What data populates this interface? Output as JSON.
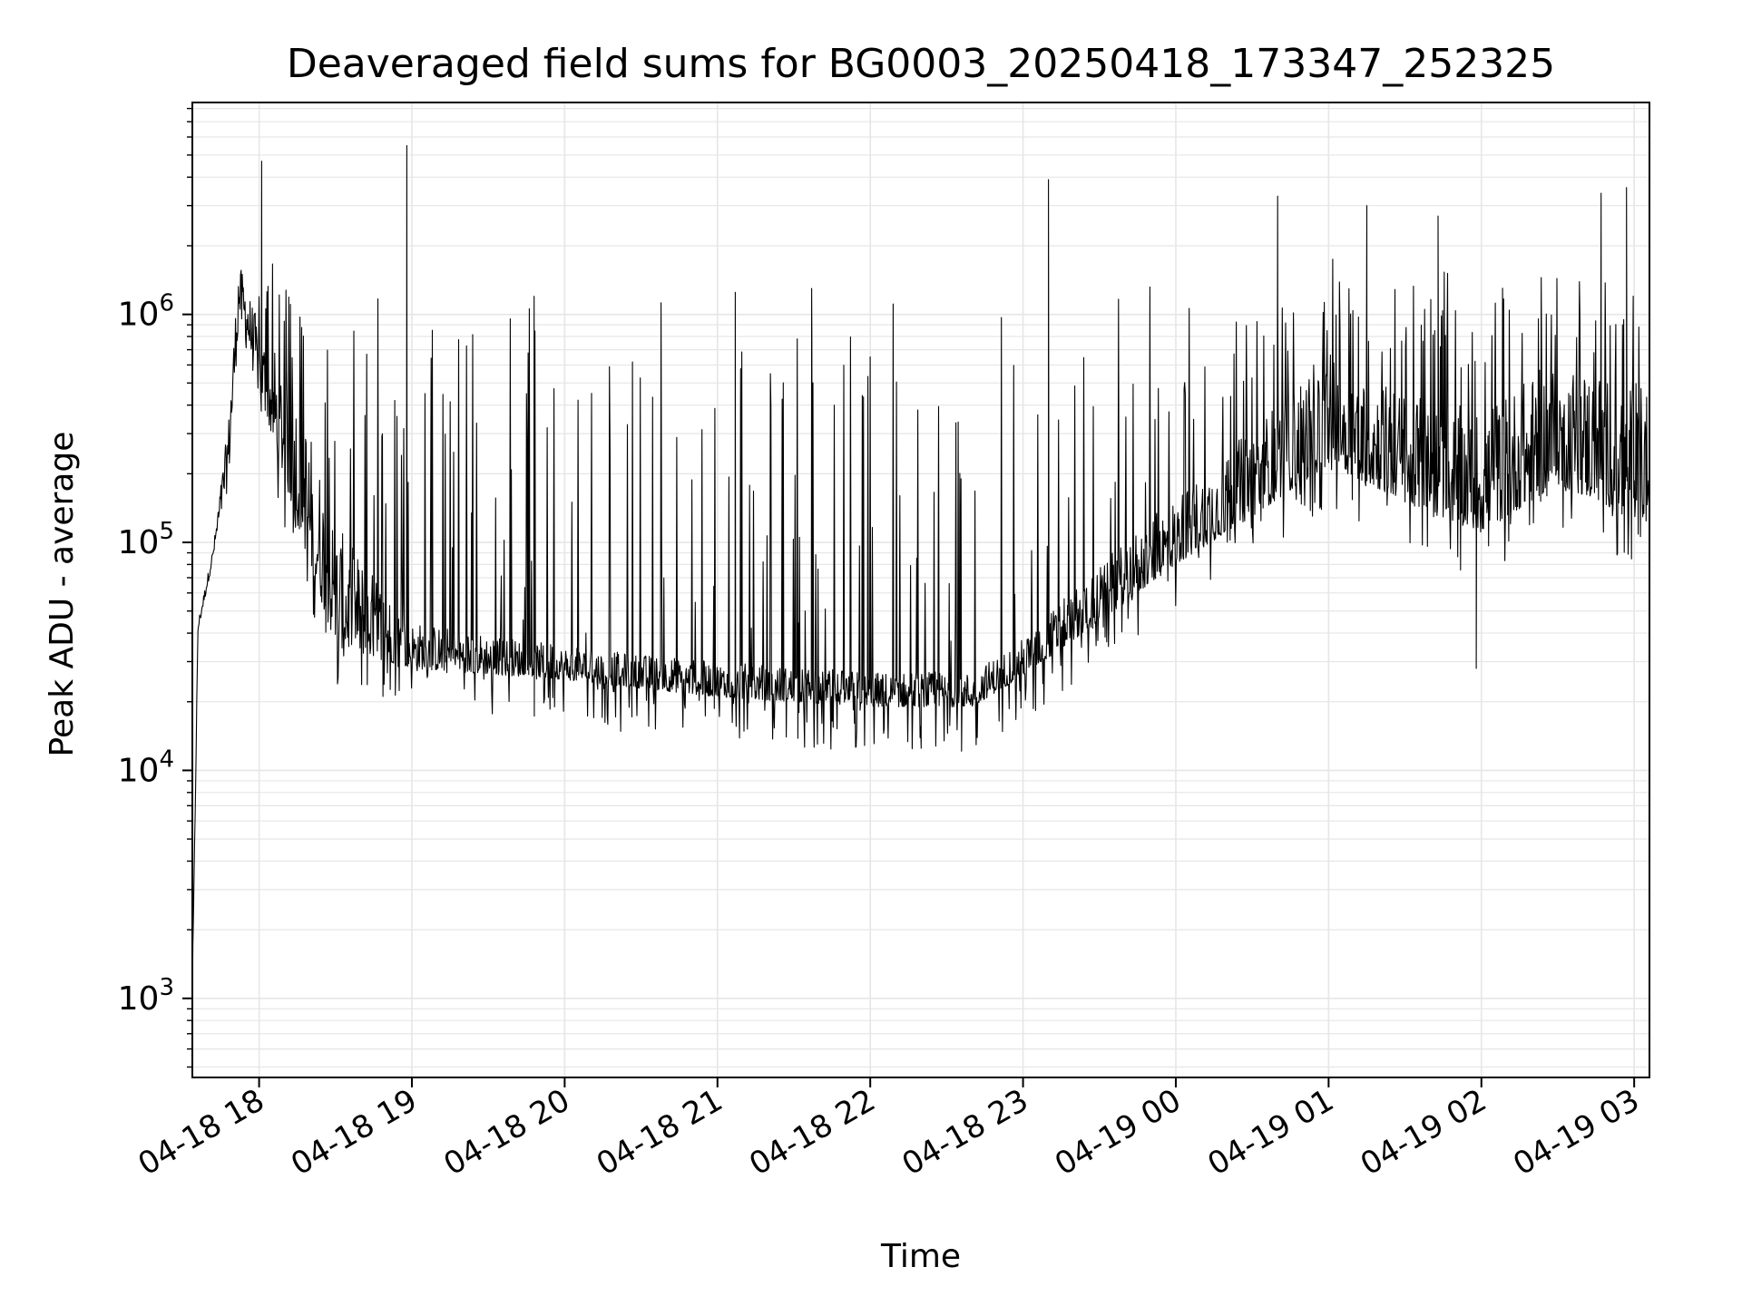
{
  "chart_data": {
    "type": "line",
    "title": "Deaveraged field sums for BG0003_20250418_173347_252325",
    "xlabel": "Time",
    "ylabel": "Peak ADU - average",
    "y_scale": "log",
    "ylim": [
      450,
      8500000
    ],
    "xlim": [
      "2025-04-18 17:33:47",
      "2025-04-19 03:06:00"
    ],
    "grid": true,
    "line_color": "#000000",
    "grid_color": "#e6e6e6",
    "x_ticks": [
      {
        "t": "2025-04-18 18:00",
        "label": "04-18 18"
      },
      {
        "t": "2025-04-18 19:00",
        "label": "04-18 19"
      },
      {
        "t": "2025-04-18 20:00",
        "label": "04-18 20"
      },
      {
        "t": "2025-04-18 21:00",
        "label": "04-18 21"
      },
      {
        "t": "2025-04-18 22:00",
        "label": "04-18 22"
      },
      {
        "t": "2025-04-18 23:00",
        "label": "04-18 23"
      },
      {
        "t": "2025-04-19 00:00",
        "label": "04-19 00"
      },
      {
        "t": "2025-04-19 01:00",
        "label": "04-19 01"
      },
      {
        "t": "2025-04-19 02:00",
        "label": "04-19 02"
      },
      {
        "t": "2025-04-19 03:00",
        "label": "04-19 03"
      }
    ],
    "y_ticks": [
      {
        "value": 1000,
        "base": "10",
        "exp": "3"
      },
      {
        "value": 10000,
        "base": "10",
        "exp": "4"
      },
      {
        "value": 100000,
        "base": "10",
        "exp": "5"
      },
      {
        "value": 1000000,
        "base": "10",
        "exp": "6"
      }
    ],
    "series": [
      {
        "baseline_profile": [
          {
            "t": "2025-04-18 17:33:47",
            "floor": 900,
            "ceil": 1200
          },
          {
            "t": "2025-04-18 17:36",
            "floor": 40000,
            "ceil": 45000
          },
          {
            "t": "2025-04-18 17:42",
            "floor": 85000,
            "ceil": 95000
          },
          {
            "t": "2025-04-18 17:48",
            "floor": 180000,
            "ceil": 350000
          },
          {
            "t": "2025-04-18 17:52",
            "floor": 900000,
            "ceil": 1700000
          },
          {
            "t": "2025-04-18 18:00",
            "floor": 450000,
            "ceil": 900000
          },
          {
            "t": "2025-04-18 18:15",
            "floor": 120000,
            "ceil": 500000
          },
          {
            "t": "2025-04-18 18:30",
            "floor": 35000,
            "ceil": 120000
          },
          {
            "t": "2025-04-18 19:00",
            "floor": 28000,
            "ceil": 45000
          },
          {
            "t": "2025-04-18 20:00",
            "floor": 25000,
            "ceil": 35000
          },
          {
            "t": "2025-04-18 21:00",
            "floor": 21000,
            "ceil": 30000
          },
          {
            "t": "2025-04-18 22:00",
            "floor": 19000,
            "ceil": 27000
          },
          {
            "t": "2025-04-18 22:40",
            "floor": 19000,
            "ceil": 27000
          },
          {
            "t": "2025-04-18 23:00",
            "floor": 26000,
            "ceil": 38000
          },
          {
            "t": "2025-04-18 23:30",
            "floor": 45000,
            "ceil": 80000
          },
          {
            "t": "2025-04-19 00:00",
            "floor": 80000,
            "ceil": 160000
          },
          {
            "t": "2025-04-19 00:30",
            "floor": 130000,
            "ceil": 320000
          },
          {
            "t": "2025-04-19 01:00",
            "floor": 220000,
            "ceil": 700000
          },
          {
            "t": "2025-04-19 01:30",
            "floor": 150000,
            "ceil": 450000
          },
          {
            "t": "2025-04-19 02:00",
            "floor": 110000,
            "ceil": 380000
          },
          {
            "t": "2025-04-19 02:30",
            "floor": 180000,
            "ceil": 650000
          },
          {
            "t": "2025-04-19 03:06",
            "floor": 120000,
            "ceil": 500000
          }
        ],
        "notable_peaks": [
          {
            "t": "2025-04-18 18:01",
            "value": 4700000
          },
          {
            "t": "2025-04-18 18:58",
            "value": 5500000
          },
          {
            "t": "2025-04-18 19:48",
            "value": 1200000
          },
          {
            "t": "2025-04-18 21:07",
            "value": 1250000
          },
          {
            "t": "2025-04-18 21:37",
            "value": 1300000
          },
          {
            "t": "2025-04-18 23:10",
            "value": 3900000
          },
          {
            "t": "2025-04-19 00:40",
            "value": 3300000
          },
          {
            "t": "2025-04-19 01:15",
            "value": 3000000
          },
          {
            "t": "2025-04-19 01:43",
            "value": 2700000
          },
          {
            "t": "2025-04-19 02:47",
            "value": 3400000
          },
          {
            "t": "2025-04-19 02:57",
            "value": 3600000
          }
        ],
        "notable_minima": [
          {
            "t": "2025-04-18 17:33:47",
            "value": 900
          },
          {
            "t": "2025-04-18 22:20",
            "value": 12500
          },
          {
            "t": "2025-04-18 21:27",
            "value": 14000
          },
          {
            "t": "2025-04-19 01:58",
            "value": 28000
          }
        ]
      }
    ]
  }
}
